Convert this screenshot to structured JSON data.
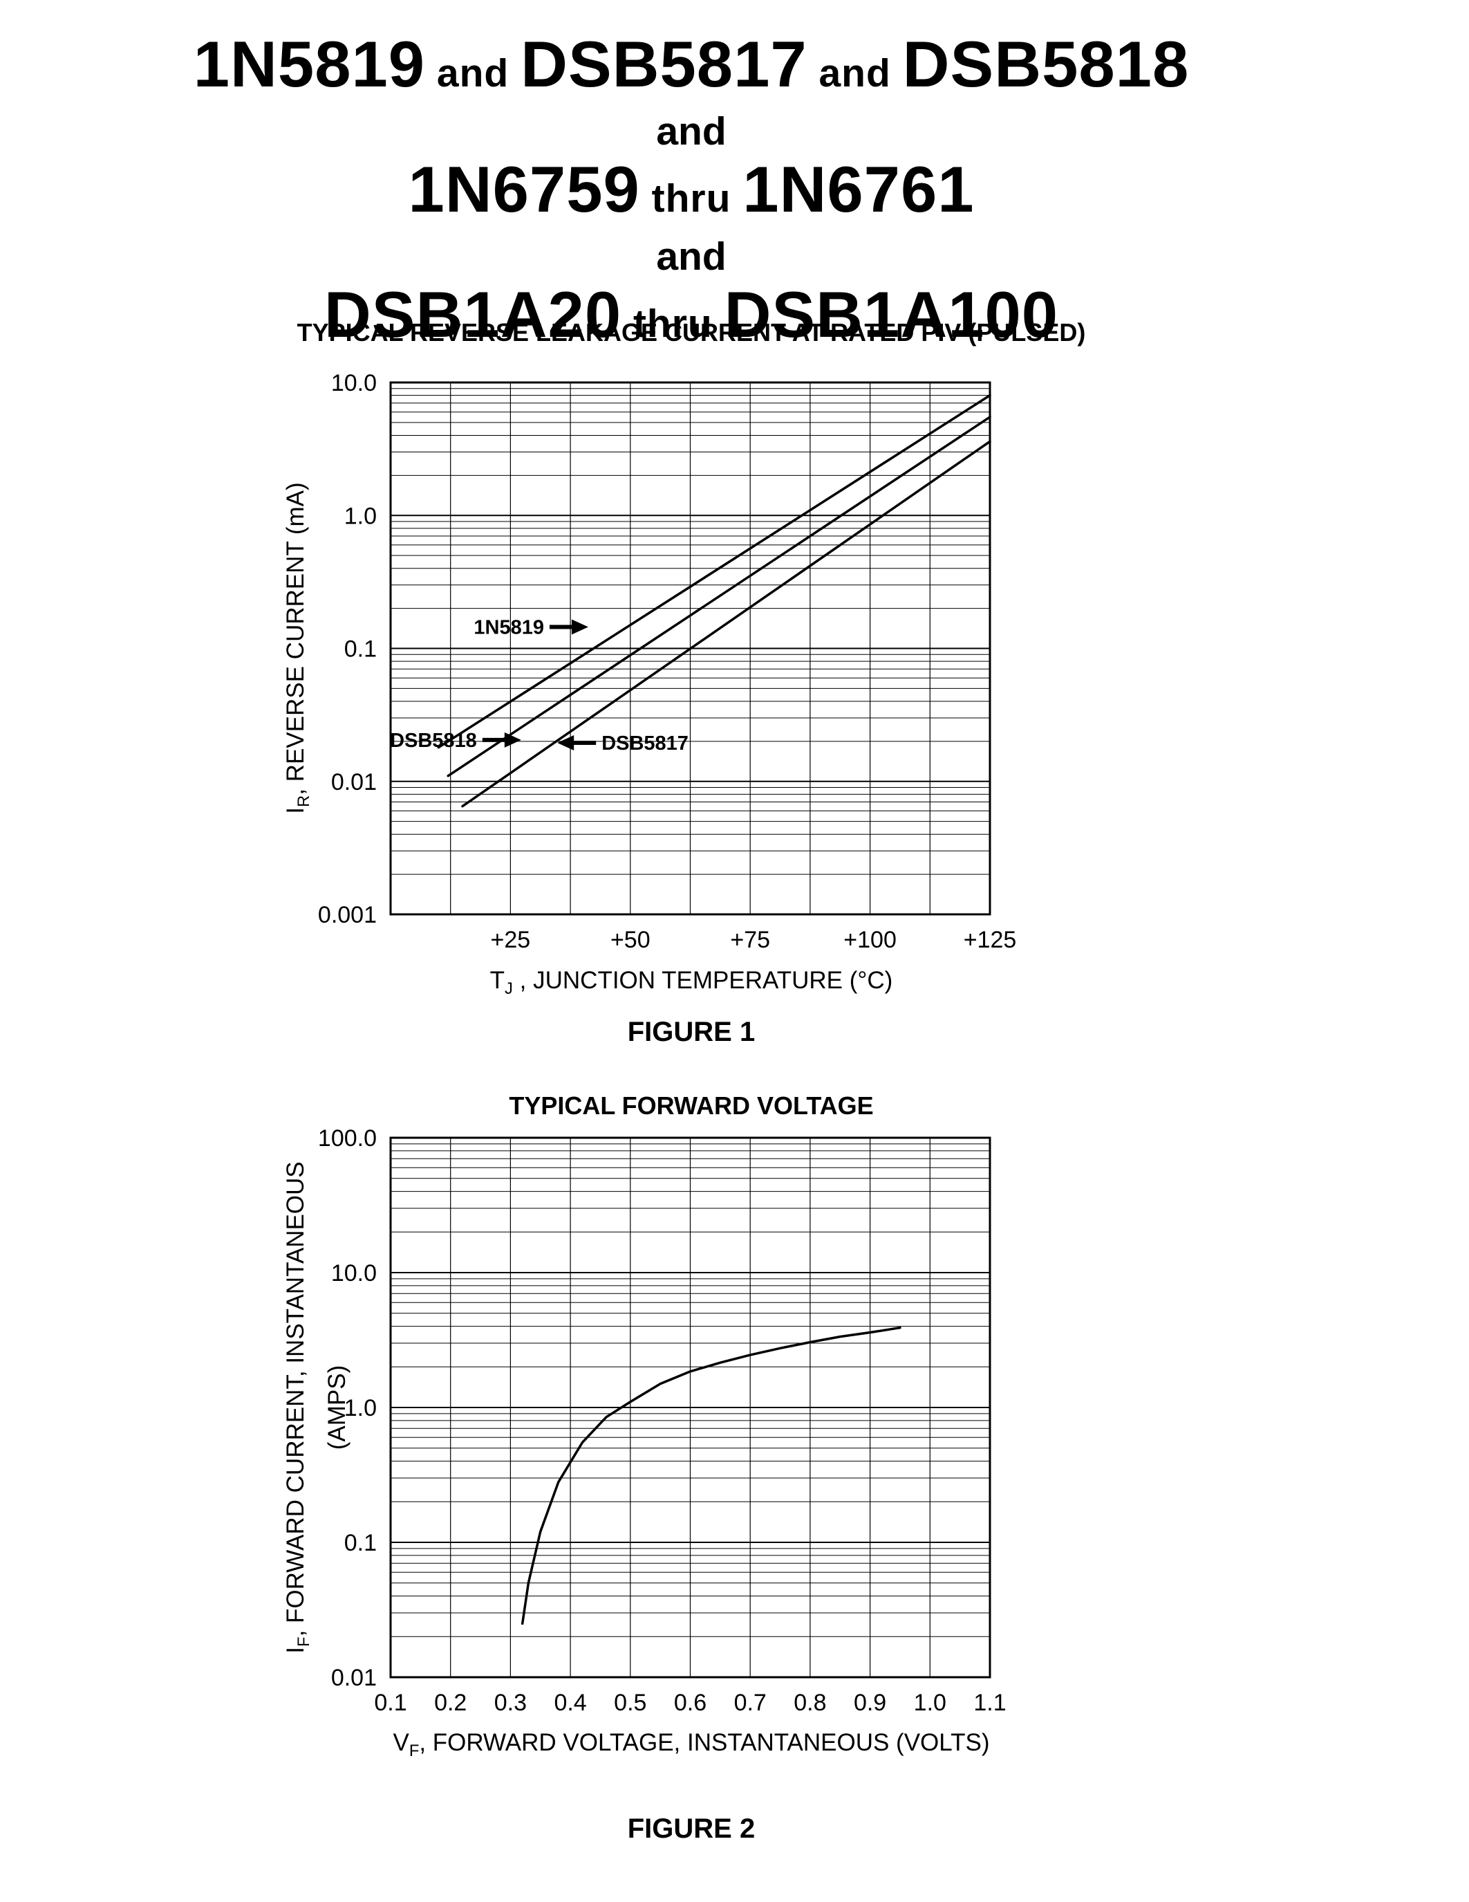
{
  "document": {
    "title": {
      "line1": {
        "p1": "1N5819",
        "j1": " and ",
        "p2": "DSB5817",
        "j2": " and ",
        "p3": "DSB5818"
      },
      "line2": "and",
      "line3": {
        "p1": "1N6759",
        "j1": " thru ",
        "p2": "1N6761"
      },
      "line4": "and",
      "line5": {
        "p1": "DSB1A20",
        "j1": " thru ",
        "p2": "DSB1A100"
      }
    },
    "figure1": {
      "title": "TYPICAL REVERSE LEAKAGE CURRENT AT RATED PIV (PULSED)",
      "ylabel": {
        "sym": "I",
        "sub": "R",
        "rest": ", REVERSE CURRENT (mA)"
      },
      "xlabel": {
        "sym": "T",
        "sub": "J",
        "rest": " , JUNCTION TEMPERATURE (°C)"
      },
      "caption": "FIGURE 1"
    },
    "figure2": {
      "title": "TYPICAL FORWARD VOLTAGE",
      "ylabel": {
        "sym": "I",
        "sub": "F",
        "rest": ", FORWARD CURRENT, INSTANTANEOUS (AMPS)"
      },
      "xlabel": {
        "sym": "V",
        "sub": "F",
        "rest": ", FORWARD VOLTAGE, INSTANTANEOUS (VOLTS)"
      },
      "caption": "FIGURE 2"
    }
  },
  "chart_data": [
    {
      "id": "fig1",
      "type": "line",
      "title": "TYPICAL REVERSE LEAKAGE CURRENT AT RATED PIV (PULSED)",
      "xlabel": "TJ, JUNCTION TEMPERATURE (°C)",
      "ylabel": "IR, REVERSE CURRENT (mA)",
      "x_axis": {
        "min": 0,
        "max": 125,
        "minor_step": 12.5,
        "ticks": [
          25,
          50,
          75,
          100,
          125
        ],
        "tick_labels": [
          "+25",
          "+50",
          "+75",
          "+100",
          "+125"
        ]
      },
      "y_axis": {
        "scale": "log",
        "min": 0.001,
        "max": 10.0,
        "ticks": [
          10,
          1,
          0.1,
          0.01,
          0.001
        ],
        "tick_labels": [
          "10.0",
          "1.0",
          "0.1",
          "0.01",
          "0.001"
        ]
      },
      "grid": true,
      "legend": "inline-arrow-labels",
      "series": [
        {
          "name": "1N5819",
          "points": [
            [
              10,
              0.018
            ],
            [
              125,
              8.0
            ]
          ]
        },
        {
          "name": "DSB5818",
          "points": [
            [
              12,
              0.011
            ],
            [
              125,
              5.5
            ]
          ]
        },
        {
          "name": "DSB5817",
          "points": [
            [
              15,
              0.0065
            ],
            [
              125,
              3.6
            ]
          ]
        }
      ],
      "annotations": [
        {
          "label": "1N5819",
          "x": 32,
          "y": 0.145,
          "dir": "right"
        },
        {
          "label": "DSB5818",
          "x": 18,
          "y": 0.0205,
          "dir": "right"
        },
        {
          "label": "DSB5817",
          "x": 44,
          "y": 0.0195,
          "dir": "left"
        }
      ]
    },
    {
      "id": "fig2",
      "type": "line",
      "title": "TYPICAL FORWARD VOLTAGE",
      "xlabel": "VF, FORWARD VOLTAGE, INSTANTANEOUS (VOLTS)",
      "ylabel": "IF, FORWARD CURRENT, INSTANTANEOUS (AMPS)",
      "x_axis": {
        "min": 0.1,
        "max": 1.1,
        "minor_step": 0.1,
        "ticks": [
          0.1,
          0.2,
          0.3,
          0.4,
          0.5,
          0.6,
          0.7,
          0.8,
          0.9,
          1.0,
          1.1
        ],
        "tick_labels": [
          "0.1",
          "0.2",
          "0.3",
          "0.4",
          "0.5",
          "0.6",
          "0.7",
          "0.8",
          "0.9",
          "1.0",
          "1.1"
        ]
      },
      "y_axis": {
        "scale": "log",
        "min": 0.01,
        "max": 100.0,
        "ticks": [
          100,
          10,
          1,
          0.1,
          0.01
        ],
        "tick_labels": [
          "100.0",
          "10.0",
          "1.0",
          "0.1",
          "0.01"
        ]
      },
      "grid": true,
      "series": [
        {
          "name": "forward-voltage",
          "points": [
            [
              0.32,
              0.025
            ],
            [
              0.33,
              0.05
            ],
            [
              0.35,
              0.12
            ],
            [
              0.38,
              0.28
            ],
            [
              0.42,
              0.55
            ],
            [
              0.46,
              0.85
            ],
            [
              0.5,
              1.1
            ],
            [
              0.55,
              1.5
            ],
            [
              0.6,
              1.85
            ],
            [
              0.65,
              2.15
            ],
            [
              0.7,
              2.45
            ],
            [
              0.75,
              2.75
            ],
            [
              0.8,
              3.05
            ],
            [
              0.85,
              3.35
            ],
            [
              0.9,
              3.6
            ],
            [
              0.95,
              3.9
            ]
          ]
        }
      ],
      "annotations": []
    }
  ]
}
